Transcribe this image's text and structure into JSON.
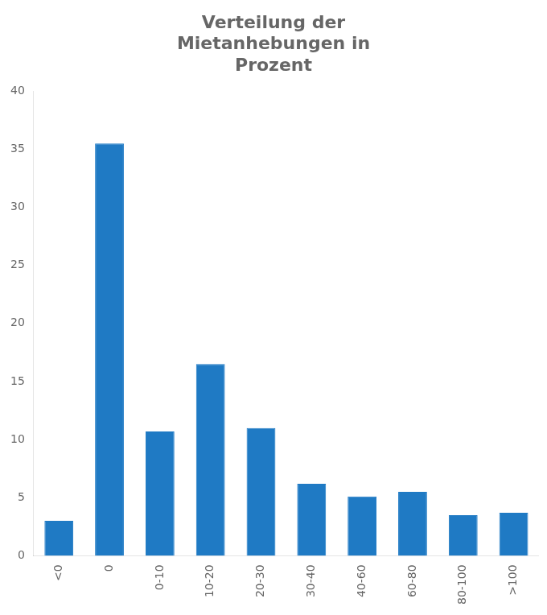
{
  "chart_data": {
    "type": "bar",
    "title": "Verteilung der\nMietanhebungen in\nProzent",
    "categories": [
      "<0",
      "0",
      "0-10",
      "10-20",
      "20-30",
      "30-40",
      "40-60",
      "60-80",
      "80-100",
      ">100"
    ],
    "values": [
      3.0,
      35.5,
      10.7,
      16.5,
      11.0,
      6.2,
      5.1,
      5.5,
      3.5,
      3.7
    ],
    "color": "#1f7ac4",
    "ylim": [
      0,
      40
    ],
    "yticks": [
      0,
      5,
      10,
      15,
      20,
      25,
      30,
      35,
      40
    ],
    "grid": false
  }
}
